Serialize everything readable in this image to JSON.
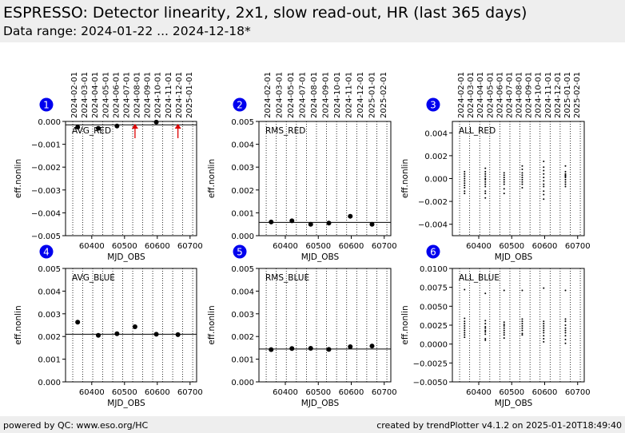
{
  "header": {
    "title": "ESPRESSO: Detector linearity, 2x1, slow read-out, HR (last 365 days)",
    "subtitle": "Data range: 2024-01-22 ... 2024-12-18*"
  },
  "footer": {
    "left": "powered by QC: www.eso.org/HC",
    "right": "created by trendPlotter v4.1.2 on 2025-01-20T18:49:40"
  },
  "colors": {
    "marker": "#000000",
    "arrow": "#dd0000",
    "badge": "#0000ee",
    "header_bg": "#eeeeee"
  },
  "date_ticks_full": [
    "2024-02-01",
    "2024-03-01",
    "2024-04-01",
    "2024-05-01",
    "2024-06-01",
    "2024-07-01",
    "2024-08-01",
    "2024-09-01",
    "2024-10-01",
    "2024-11-01",
    "2024-12-01",
    "2025-01-01"
  ],
  "date_ticks_short": [
    "2024-02-01",
    "2024-03-01",
    "2024-05-01",
    "2024-07-01",
    "2024-08-01",
    "2024-09-01",
    "2024-10-01",
    "2024-11-01",
    "2024-12-01",
    "2025-01-01",
    "2025-02-01"
  ],
  "date_ticks_right": [
    "2024-02-01",
    "2024-03-01",
    "2024-04-01",
    "2024-05-01",
    "2024-06-01",
    "2024-07-01",
    "2024-08-01",
    "2024-09-01",
    "2024-10-01",
    "2024-11-01",
    "2024-12-01",
    "2025-01-01",
    "2025-02-01"
  ],
  "chart_data": [
    {
      "id": 1,
      "type": "scatter",
      "label": "AVG_RED",
      "badge": "1",
      "xlabel": "MJD_OBS",
      "ylabel": "eff.nonlin",
      "xlim": [
        60320,
        60720
      ],
      "xticks": [
        60400,
        60500,
        60600,
        60700
      ],
      "ylim": [
        -0.005,
        0.0
      ],
      "yticks": [
        -0.005,
        -0.004,
        -0.003,
        -0.002,
        -0.001,
        0.0
      ],
      "ytick_labels": [
        "−0.005",
        "−0.004",
        "−0.003",
        "−0.002",
        "−0.001",
        "0.000"
      ],
      "x": [
        60357,
        60420,
        60477,
        60597
      ],
      "y": [
        -0.00025,
        -0.0003,
        -0.0002,
        -3e-05
      ],
      "up_arrows_x": [
        60532,
        60663
      ],
      "reference_line": -0.00015,
      "dates_key": "date_ticks_full"
    },
    {
      "id": 2,
      "type": "scatter",
      "label": "RMS_RED",
      "badge": "2",
      "xlabel": "MJD_OBS",
      "ylabel": "eff.nonlin",
      "xlim": [
        60320,
        60720
      ],
      "xticks": [
        60400,
        60500,
        60600,
        60700
      ],
      "ylim": [
        0.0,
        0.005
      ],
      "yticks": [
        0.0,
        0.001,
        0.002,
        0.003,
        0.004,
        0.005
      ],
      "ytick_labels": [
        "0.000",
        "0.001",
        "0.002",
        "0.003",
        "0.004",
        "0.005"
      ],
      "x": [
        60357,
        60420,
        60477,
        60532,
        60597,
        60663
      ],
      "y": [
        0.0006,
        0.00065,
        0.0005,
        0.00055,
        0.00085,
        0.0005
      ],
      "reference_line": 0.00058,
      "dates_key": "date_ticks_short"
    },
    {
      "id": 3,
      "type": "scatter",
      "label": "ALL_RED",
      "badge": "3",
      "xlabel": "MJD_OBS",
      "ylabel": "eff.nonlin",
      "xlim": [
        60320,
        60720
      ],
      "xticks": [
        60400,
        60500,
        60600,
        60700
      ],
      "ylim": [
        -0.005,
        0.005
      ],
      "yticks": [
        -0.004,
        -0.002,
        0.0,
        0.002,
        0.004
      ],
      "ytick_labels": [
        "−0.004",
        "−0.002",
        "0.000",
        "0.002",
        "0.004"
      ],
      "clusters": [
        {
          "x": 60357,
          "y": [
            0.0006,
            0.0004,
            0.0002,
            0.0,
            -0.0002,
            -0.0004,
            -0.0006,
            -0.0008,
            -0.0011,
            -0.0013
          ]
        },
        {
          "x": 60420,
          "y": [
            0.0009,
            0.0006,
            0.0004,
            0.0002,
            0.0,
            -0.0001,
            -0.0003,
            -0.0005,
            -0.0007,
            -0.0011,
            -0.0013,
            -0.0017
          ]
        },
        {
          "x": 60477,
          "y": [
            0.0005,
            0.0003,
            0.0001,
            -0.0001,
            -0.0003,
            -0.0005,
            -0.0009,
            -0.0013
          ]
        },
        {
          "x": 60532,
          "y": [
            0.0011,
            0.0008,
            0.0005,
            0.0003,
            0.0001,
            -0.0001,
            -0.0003,
            -0.0005,
            -0.0008
          ]
        },
        {
          "x": 60597,
          "y": [
            0.0015,
            0.001,
            0.0007,
            0.0004,
            0.0001,
            -0.0002,
            -0.0005,
            -0.0007,
            -0.0011,
            -0.0014,
            -0.0018
          ]
        },
        {
          "x": 60663,
          "y": [
            0.0011,
            0.0006,
            0.0004,
            0.0003,
            0.0002,
            0.0001,
            -0.0001,
            -0.0003,
            -0.0005,
            -0.0007
          ]
        }
      ],
      "dates_key": "date_ticks_right"
    },
    {
      "id": 4,
      "type": "scatter",
      "label": "AVG_BLUE",
      "badge": "4",
      "xlabel": "MJD_OBS",
      "ylabel": "eff.nonlin",
      "xlim": [
        60320,
        60720
      ],
      "xticks": [
        60400,
        60500,
        60600,
        60700
      ],
      "ylim": [
        0.0,
        0.005
      ],
      "yticks": [
        0.0,
        0.001,
        0.002,
        0.003,
        0.004,
        0.005
      ],
      "ytick_labels": [
        "0.000",
        "0.001",
        "0.002",
        "0.003",
        "0.004",
        "0.005"
      ],
      "x": [
        60357,
        60420,
        60477,
        60532,
        60597,
        60663
      ],
      "y": [
        0.00263,
        0.00205,
        0.00212,
        0.00243,
        0.0021,
        0.00208
      ],
      "reference_line": 0.0021
    },
    {
      "id": 5,
      "type": "scatter",
      "label": "RMS_BLUE",
      "badge": "5",
      "xlabel": "MJD_OBS",
      "ylabel": "eff.nonlin",
      "xlim": [
        60320,
        60720
      ],
      "xticks": [
        60400,
        60500,
        60600,
        60700
      ],
      "ylim": [
        0.0,
        0.005
      ],
      "yticks": [
        0.0,
        0.001,
        0.002,
        0.003,
        0.004,
        0.005
      ],
      "ytick_labels": [
        "0.000",
        "0.001",
        "0.002",
        "0.003",
        "0.004",
        "0.005"
      ],
      "x": [
        60357,
        60420,
        60477,
        60532,
        60597,
        60663
      ],
      "y": [
        0.00142,
        0.00147,
        0.00148,
        0.00143,
        0.00155,
        0.00158
      ],
      "reference_line": 0.00145
    },
    {
      "id": 6,
      "type": "scatter",
      "label": "ALL_BLUE",
      "badge": "6",
      "xlabel": "MJD_OBS",
      "ylabel": "eff.nonlin",
      "xlim": [
        60320,
        60720
      ],
      "xticks": [
        60400,
        60500,
        60600,
        60700
      ],
      "ylim": [
        -0.005,
        0.01
      ],
      "yticks": [
        -0.005,
        -0.0025,
        0.0,
        0.0025,
        0.005,
        0.0075,
        0.01
      ],
      "ytick_labels": [
        "−0.0050",
        "−0.0025",
        "0.0000",
        "0.0025",
        "0.0050",
        "0.0075",
        "0.0100"
      ],
      "clusters": [
        {
          "x": 60357,
          "y": [
            0.0072,
            0.0034,
            0.003,
            0.0027,
            0.0024,
            0.0021,
            0.0018,
            0.0015,
            0.0012,
            0.0009
          ]
        },
        {
          "x": 60420,
          "y": [
            0.0067,
            0.0031,
            0.0027,
            0.0023,
            0.0021,
            0.0018,
            0.0016,
            0.0013,
            0.0007,
            0.0005
          ]
        },
        {
          "x": 60477,
          "y": [
            0.0071,
            0.0029,
            0.0026,
            0.0024,
            0.0021,
            0.0018,
            0.0015,
            0.0012,
            0.0008
          ]
        },
        {
          "x": 60532,
          "y": [
            0.0071,
            0.0033,
            0.003,
            0.0027,
            0.0024,
            0.0021,
            0.0018,
            0.0014,
            0.0012
          ]
        },
        {
          "x": 60597,
          "y": [
            0.0074,
            0.003,
            0.0027,
            0.0024,
            0.0021,
            0.0018,
            0.0015,
            0.0011,
            0.0007,
            0.0003
          ]
        },
        {
          "x": 60663,
          "y": [
            0.0071,
            0.0033,
            0.003,
            0.0025,
            0.0021,
            0.0018,
            0.0015,
            0.0011,
            0.0006,
            0.0001
          ]
        }
      ]
    }
  ]
}
